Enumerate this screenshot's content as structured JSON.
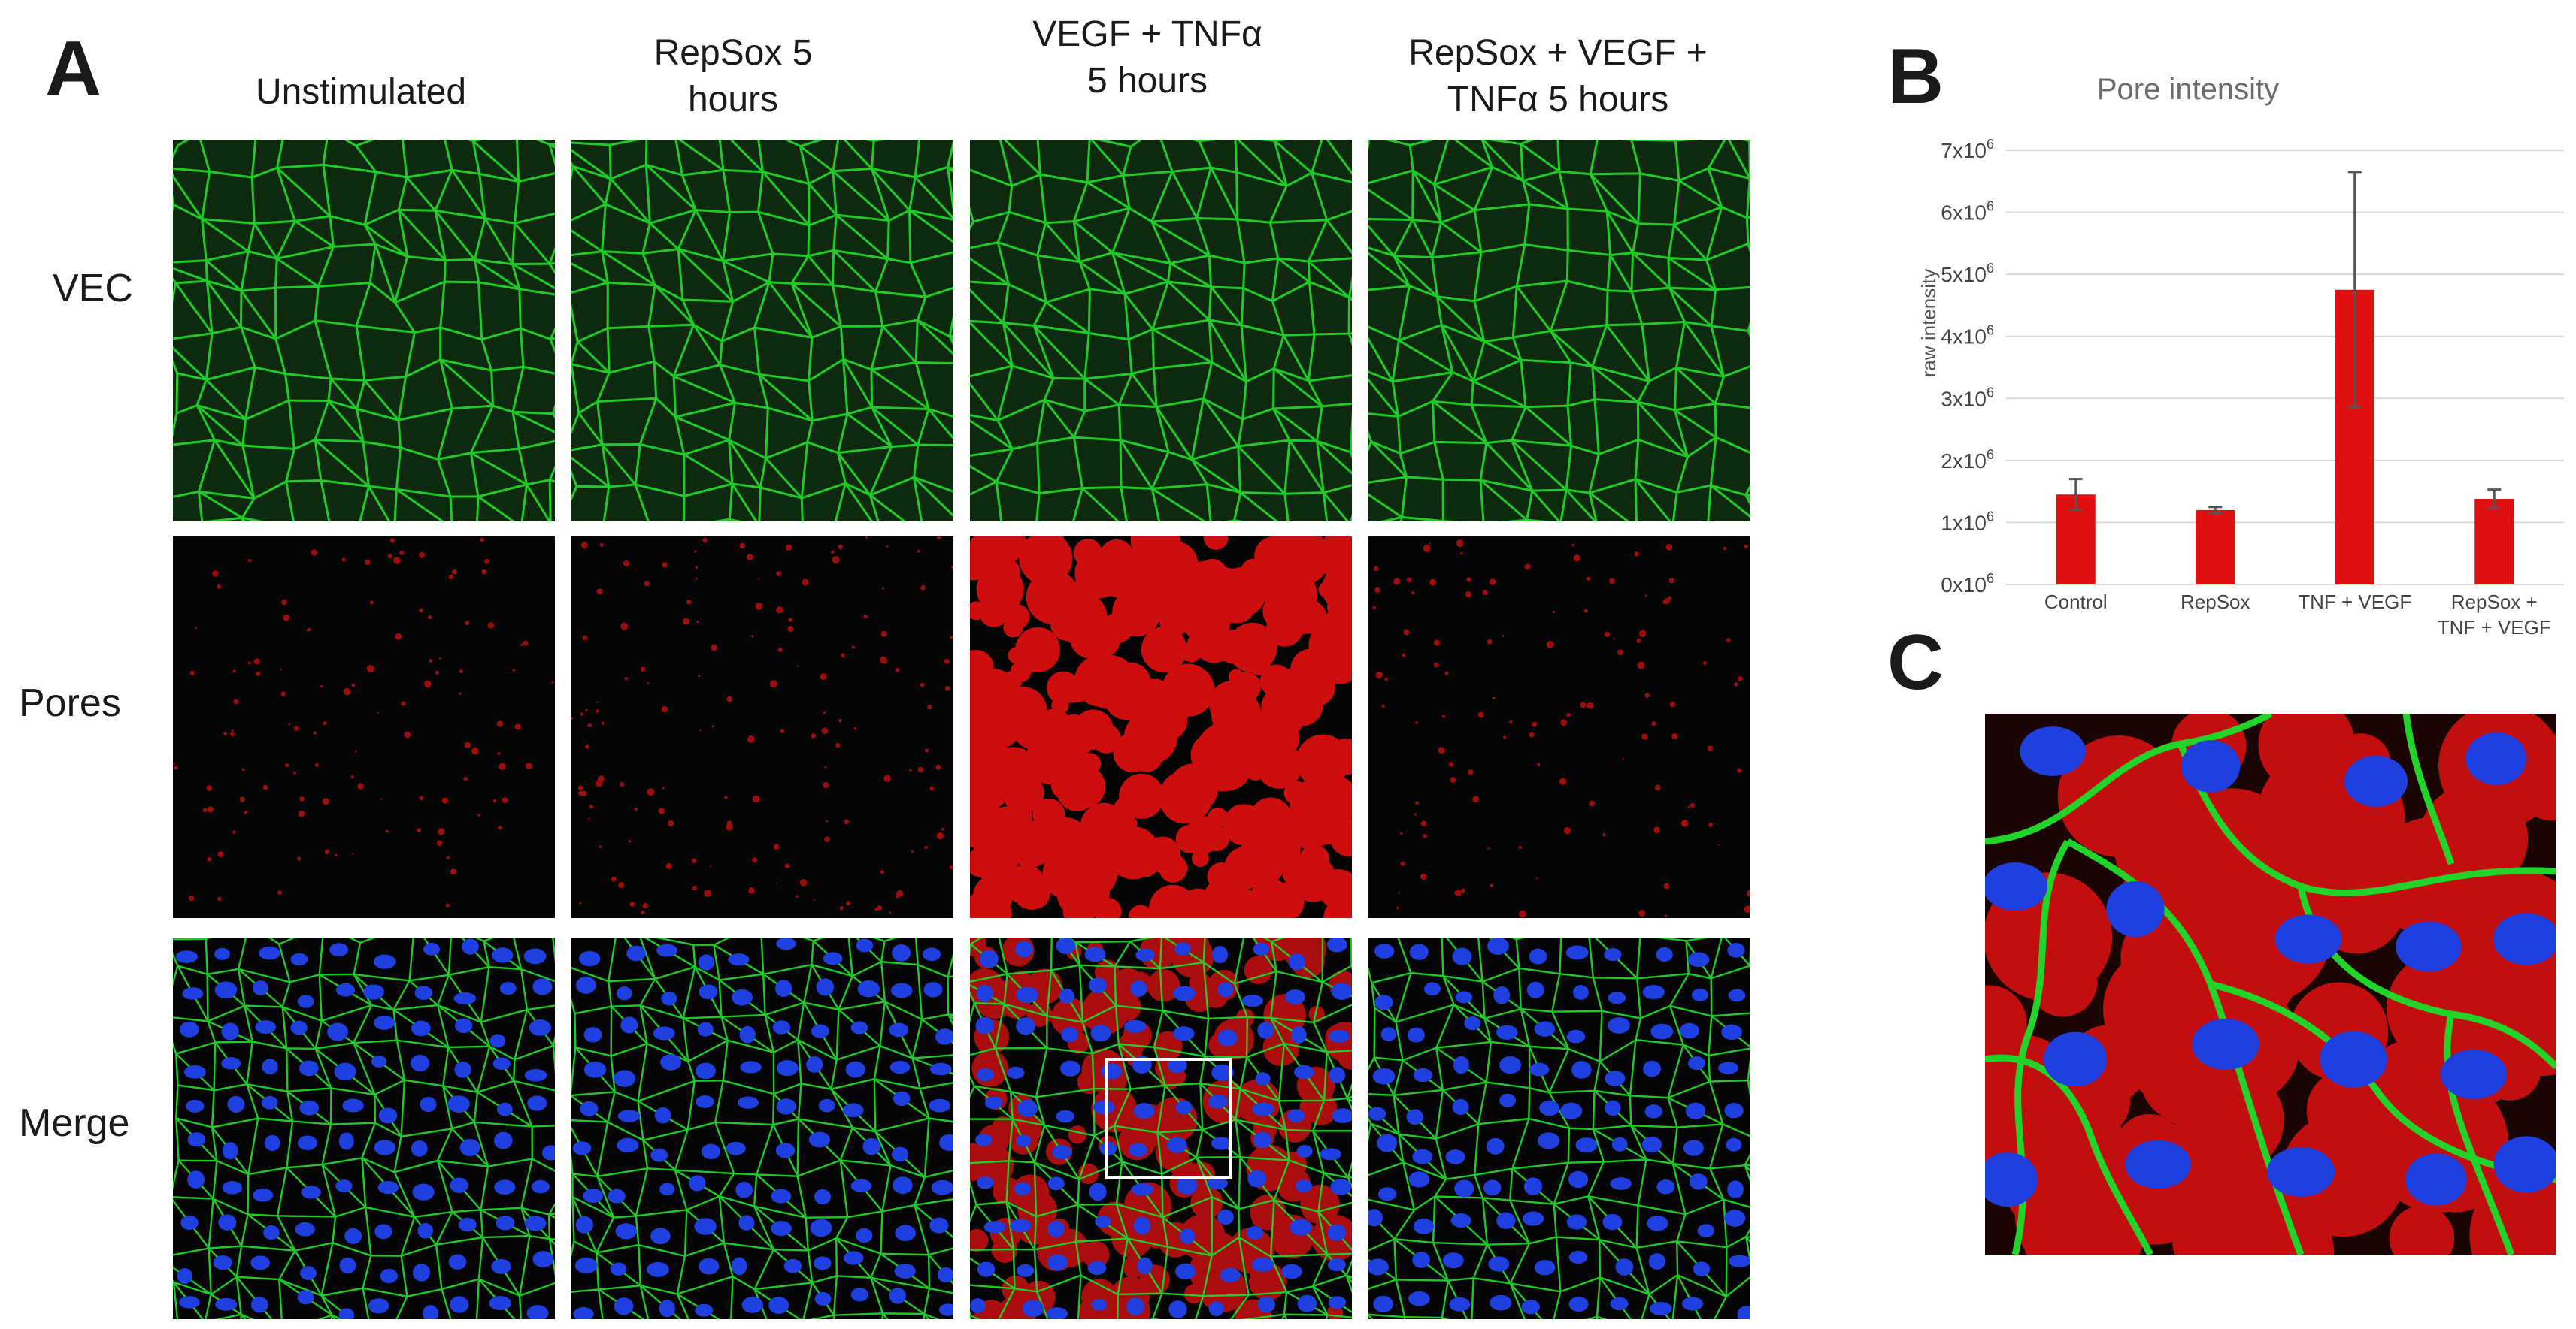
{
  "panel_a": {
    "letter": "A",
    "columns": [
      {
        "line1": "Unstimulated",
        "line2": ""
      },
      {
        "line1": "RepSox 5",
        "line2": "hours"
      },
      {
        "line1": "VEGF + TNFα",
        "line2": "5 hours"
      },
      {
        "line1": "RepSox + VEGF +",
        "line2": "TNFα 5 hours"
      }
    ],
    "rows": [
      "VEC",
      "Pores",
      "Merge"
    ]
  },
  "panel_b": {
    "letter": "B"
  },
  "panel_c": {
    "letter": "C"
  },
  "chart_data": {
    "type": "bar",
    "title": "Pore intensity",
    "xlabel": "",
    "ylabel": "raw intensity",
    "categories": [
      "Control",
      "RepSox",
      "TNF + VEGF",
      "RepSox + TNF + VEGF"
    ],
    "category_lines": [
      [
        "Control"
      ],
      [
        "RepSox"
      ],
      [
        "TNF + VEGF"
      ],
      [
        "RepSox +",
        "TNF + VEGF"
      ]
    ],
    "values": [
      1450000,
      1200000,
      4750000,
      1380000
    ],
    "errors": [
      250000,
      50000,
      1900000,
      150000
    ],
    "ylim": [
      0,
      7000000
    ],
    "yticks": [
      {
        "value": 0,
        "base": "0x10",
        "exp": "6"
      },
      {
        "value": 1000000,
        "base": "1x10",
        "exp": "6"
      },
      {
        "value": 2000000,
        "base": "2x10",
        "exp": "6"
      },
      {
        "value": 3000000,
        "base": "3x10",
        "exp": "6"
      },
      {
        "value": 4000000,
        "base": "4x10",
        "exp": "6"
      },
      {
        "value": 5000000,
        "base": "5x10",
        "exp": "6"
      },
      {
        "value": 6000000,
        "base": "6x10",
        "exp": "6"
      },
      {
        "value": 7000000,
        "base": "7x10",
        "exp": "6"
      }
    ],
    "grid": true,
    "bar_color": "#e01010",
    "error_color": "#555555"
  },
  "colors": {
    "vec": "#22d42a",
    "pores": "#e01010",
    "nuclei": "#1f3fe0"
  }
}
